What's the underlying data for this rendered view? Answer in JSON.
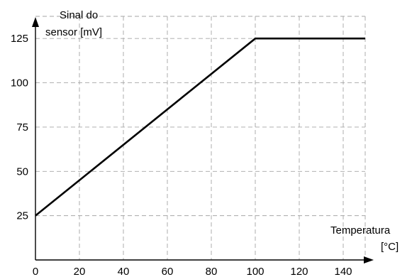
{
  "chart_data": {
    "type": "line",
    "title": "",
    "ylabel": [
      "Sinal do",
      "sensor [mV]"
    ],
    "xlabel": [
      "Temperatura",
      "[°C]"
    ],
    "xlim": [
      0,
      150
    ],
    "ylim": [
      0,
      137.5
    ],
    "xticks": [
      0,
      20,
      40,
      60,
      80,
      100,
      120,
      140
    ],
    "yticks": [
      25,
      50,
      75,
      100,
      125
    ],
    "grid": true,
    "series": [
      {
        "x": [
          0,
          100,
          150
        ],
        "y": [
          25,
          125,
          125
        ]
      }
    ]
  }
}
